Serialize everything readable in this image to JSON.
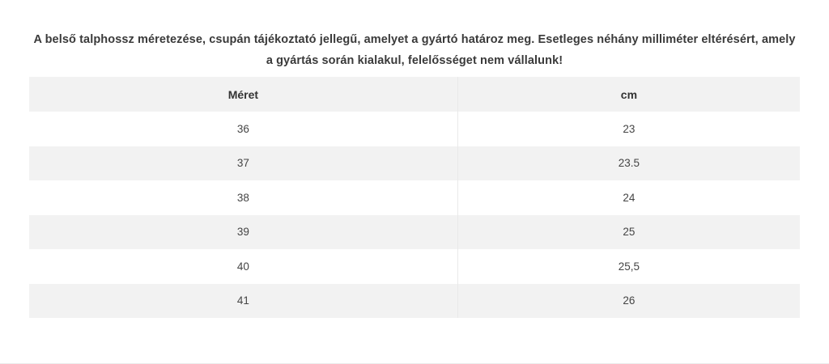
{
  "disclaimer": {
    "text": "A belső talphossz méretezése, csupán tájékoztató jellegű, amelyet a gyártó határoz meg. Esetleges néhány milliméter eltérésért, amely a gyártás során kialakul, felelősséget nem vállalunk!"
  },
  "size_table": {
    "columns": [
      {
        "label": "Méret"
      },
      {
        "label": "cm"
      }
    ],
    "rows": [
      {
        "meret": "36",
        "cm": "23"
      },
      {
        "meret": "37",
        "cm": "23.5"
      },
      {
        "meret": "38",
        "cm": "24"
      },
      {
        "meret": "39",
        "cm": "25"
      },
      {
        "meret": "40",
        "cm": "25,5"
      },
      {
        "meret": "41",
        "cm": "26"
      }
    ]
  },
  "colors": {
    "header_bg": "#f2f2f2",
    "alt_row_bg": "#f2f2f2",
    "row_bg": "#ffffff",
    "title_text": "#3a3a3a",
    "cell_text": "#454545",
    "column_divider": "#e9e9e9",
    "page_bottom_line": "#ececec"
  }
}
